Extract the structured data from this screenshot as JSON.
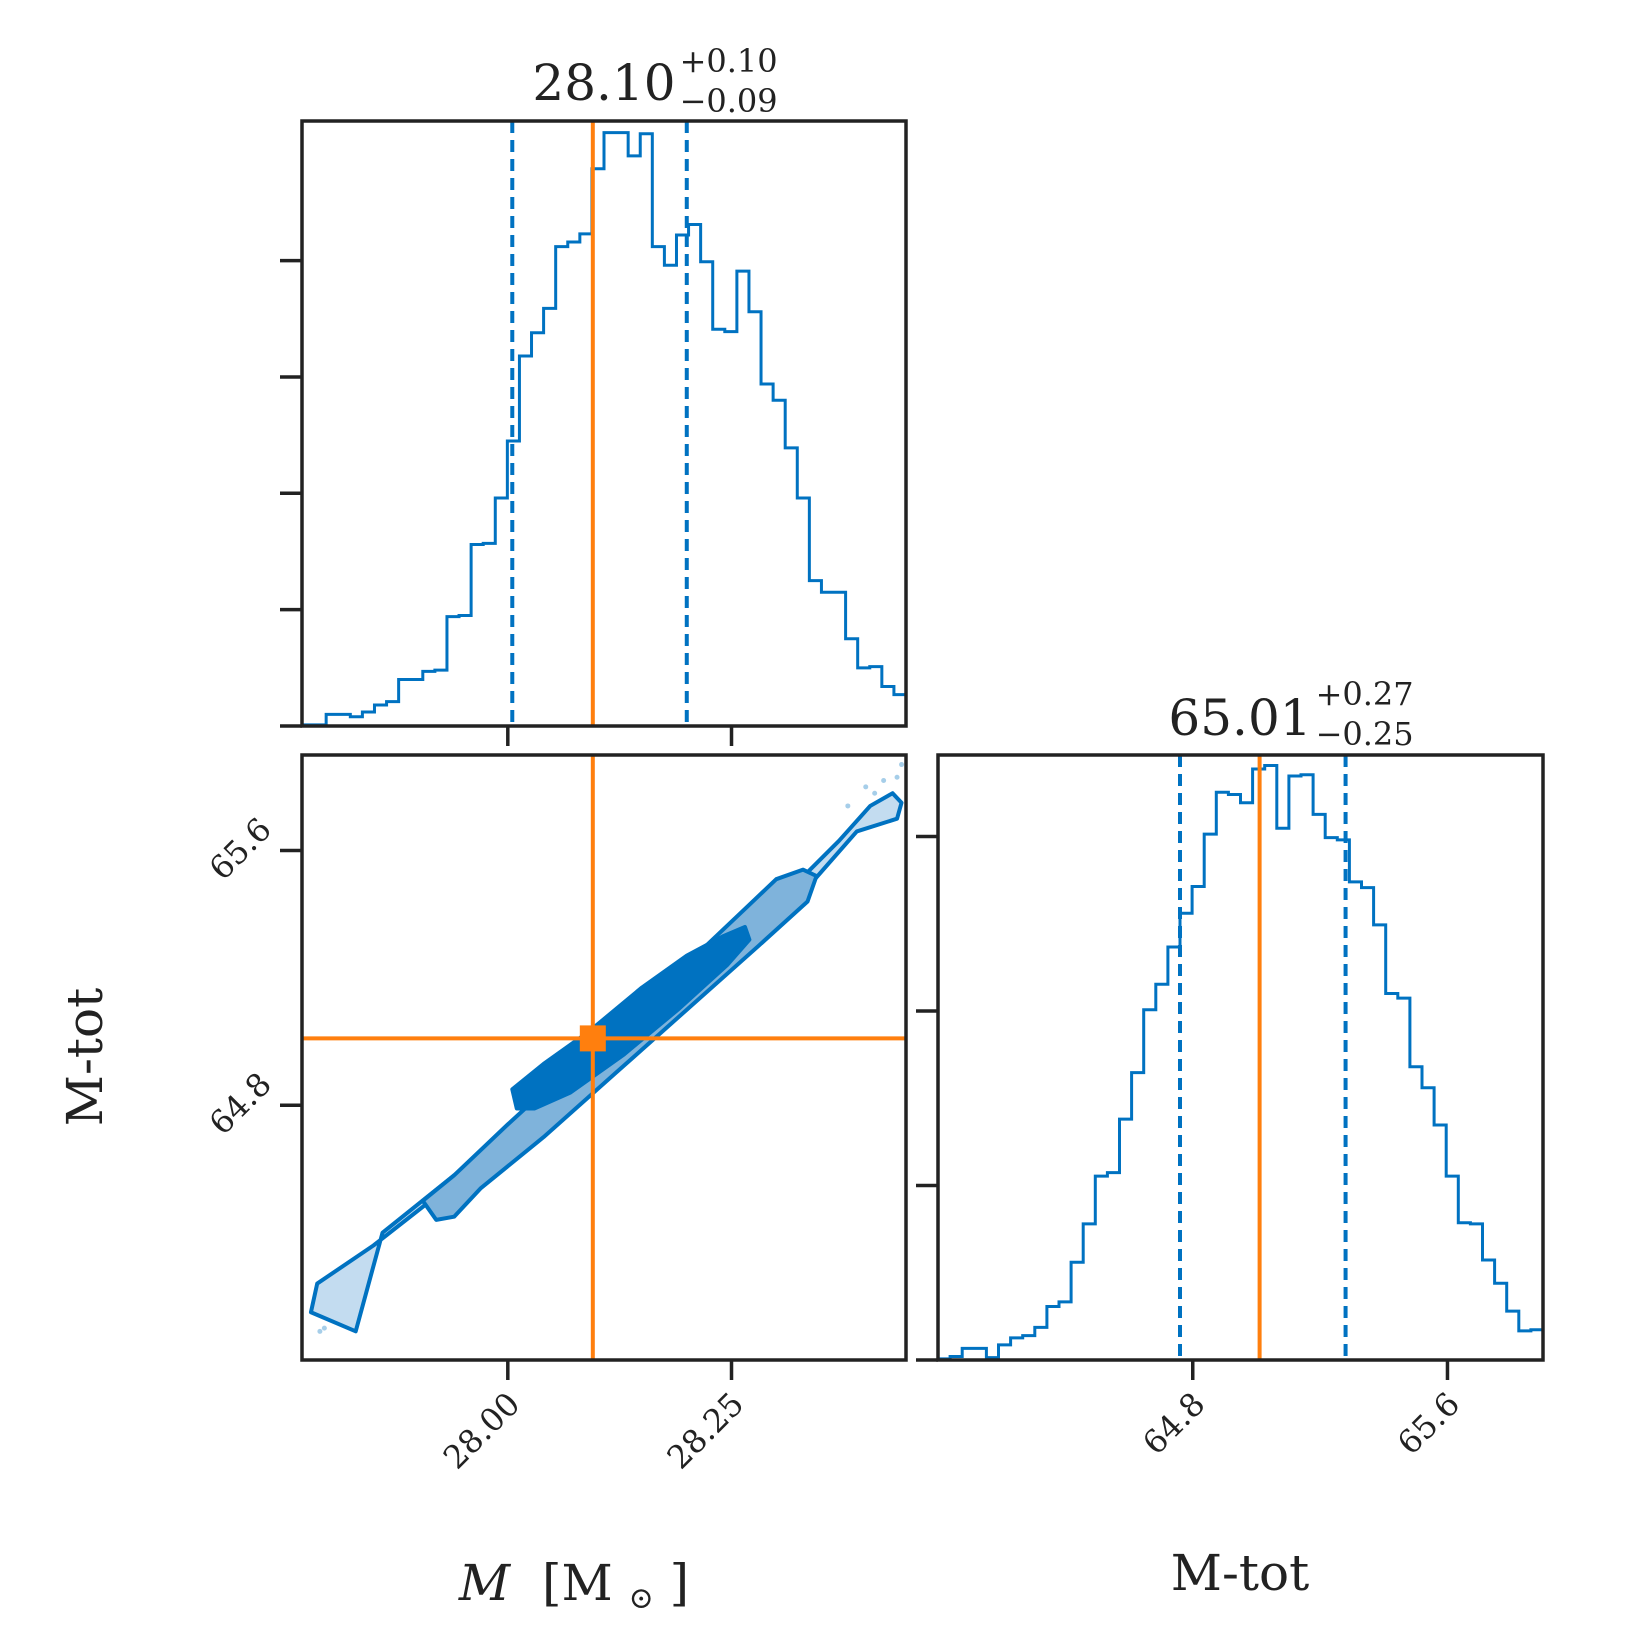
{
  "chart_data": {
    "type": "corner",
    "accent_color": "#0072c1",
    "truth_color": "#ff7f0e",
    "fill_colors": [
      "#c3dcf0",
      "#7fb3db",
      "#0072c1"
    ],
    "params": [
      {
        "key": "M",
        "label_var": "M",
        "label_unit": "[M",
        "label_unit_sub": "⊙",
        "label_unit_close": "]",
        "range": [
          27.77,
          28.445
        ],
        "ticks": [
          28.0,
          28.25
        ],
        "tick_labels": [
          "28.00",
          "28.25"
        ],
        "median": "28.10",
        "plus": "+0.10",
        "minus": "−0.09",
        "q_lo": 28.005,
        "q_hi": 28.2,
        "truth": 28.095
      },
      {
        "key": "M-tot",
        "label": "M-tot",
        "range": [
          64.0,
          65.9
        ],
        "ticks": [
          64.8,
          65.6
        ],
        "tick_labels": [
          "64.8",
          "65.6"
        ],
        "median": "65.01",
        "plus": "+0.27",
        "minus": "−0.25",
        "q_lo": 64.76,
        "q_hi": 65.28,
        "truth": 65.01
      }
    ],
    "hist_M": {
      "edges_start": 27.77,
      "bin_width": 0.0135,
      "counts": [
        1,
        1,
        10,
        10,
        8,
        12,
        18,
        21,
        40,
        40,
        47,
        48,
        94,
        95,
        156,
        157,
        196,
        245,
        318,
        338,
        359,
        412,
        416,
        423,
        479,
        510,
        510,
        490,
        509,
        412,
        396,
        422,
        431,
        399,
        341,
        339,
        391,
        356,
        294,
        280,
        239,
        196,
        125,
        115,
        115,
        75,
        50,
        51,
        34,
        27,
        26,
        4,
        5,
        6,
        6,
        4,
        5,
        3,
        1,
        1
      ]
    },
    "hist_M_ymax": 520,
    "hist_Mtot": {
      "edges_start": 64.0,
      "bin_width": 0.038,
      "counts": [
        1,
        3,
        10,
        10,
        2,
        13,
        19,
        21,
        28,
        46,
        50,
        84,
        117,
        158,
        161,
        207,
        247,
        301,
        323,
        355,
        384,
        407,
        452,
        488,
        486,
        479,
        508,
        511,
        457,
        502,
        503,
        469,
        449,
        447,
        411,
        406,
        374,
        315,
        311,
        252,
        234,
        202,
        158,
        118,
        117,
        86,
        66,
        42,
        25,
        26,
        12,
        20,
        11,
        10,
        2,
        4,
        10,
        3,
        4,
        1
      ]
    },
    "hist_Mtot_ymax": 520,
    "scatter_points": [
      [
        28.4,
        65.8
      ],
      [
        28.42,
        65.82
      ],
      [
        28.44,
        65.87
      ],
      [
        28.38,
        65.74
      ],
      [
        28.41,
        65.78
      ],
      [
        27.79,
        64.09
      ],
      [
        27.795,
        64.1
      ],
      [
        28.435,
        65.83
      ]
    ],
    "contours": [
      {
        "level": "outer",
        "points": [
          [
            27.83,
            64.09
          ],
          [
            27.78,
            64.15
          ],
          [
            27.787,
            64.24
          ],
          [
            27.85,
            64.36
          ],
          [
            27.95,
            64.58
          ],
          [
            28.03,
            64.76
          ],
          [
            28.1,
            64.94
          ],
          [
            28.175,
            65.12
          ],
          [
            28.25,
            65.3
          ],
          [
            28.32,
            65.49
          ],
          [
            28.37,
            65.63
          ],
          [
            28.405,
            65.74
          ],
          [
            28.43,
            65.78
          ],
          [
            28.44,
            65.75
          ],
          [
            28.435,
            65.7
          ],
          [
            28.39,
            65.66
          ],
          [
            28.34,
            65.5
          ],
          [
            28.28,
            65.34
          ],
          [
            28.2,
            65.16
          ],
          [
            28.12,
            64.98
          ],
          [
            28.04,
            64.8
          ],
          [
            27.94,
            64.58
          ],
          [
            27.86,
            64.4
          ],
          [
            27.83,
            64.09
          ]
        ]
      },
      {
        "level": "mid",
        "points": [
          [
            27.92,
            64.44
          ],
          [
            27.905,
            64.5
          ],
          [
            27.94,
            64.58
          ],
          [
            28.0,
            64.74
          ],
          [
            28.07,
            64.92
          ],
          [
            28.14,
            65.1
          ],
          [
            28.21,
            65.27
          ],
          [
            28.27,
            65.43
          ],
          [
            28.3,
            65.51
          ],
          [
            28.33,
            65.54
          ],
          [
            28.345,
            65.52
          ],
          [
            28.335,
            65.44
          ],
          [
            28.28,
            65.3
          ],
          [
            28.2,
            65.1
          ],
          [
            28.12,
            64.9
          ],
          [
            28.04,
            64.7
          ],
          [
            27.97,
            64.54
          ],
          [
            27.94,
            64.45
          ],
          [
            27.92,
            64.44
          ]
        ]
      },
      {
        "level": "inner",
        "points": [
          [
            28.01,
            64.79
          ],
          [
            28.005,
            64.85
          ],
          [
            28.04,
            64.93
          ],
          [
            28.09,
            65.03
          ],
          [
            28.15,
            65.17
          ],
          [
            28.2,
            65.27
          ],
          [
            28.24,
            65.33
          ],
          [
            28.265,
            65.36
          ],
          [
            28.27,
            65.32
          ],
          [
            28.245,
            65.24
          ],
          [
            28.19,
            65.1
          ],
          [
            28.13,
            64.96
          ],
          [
            28.07,
            64.84
          ],
          [
            28.03,
            64.79
          ],
          [
            28.01,
            64.79
          ]
        ]
      }
    ]
  }
}
